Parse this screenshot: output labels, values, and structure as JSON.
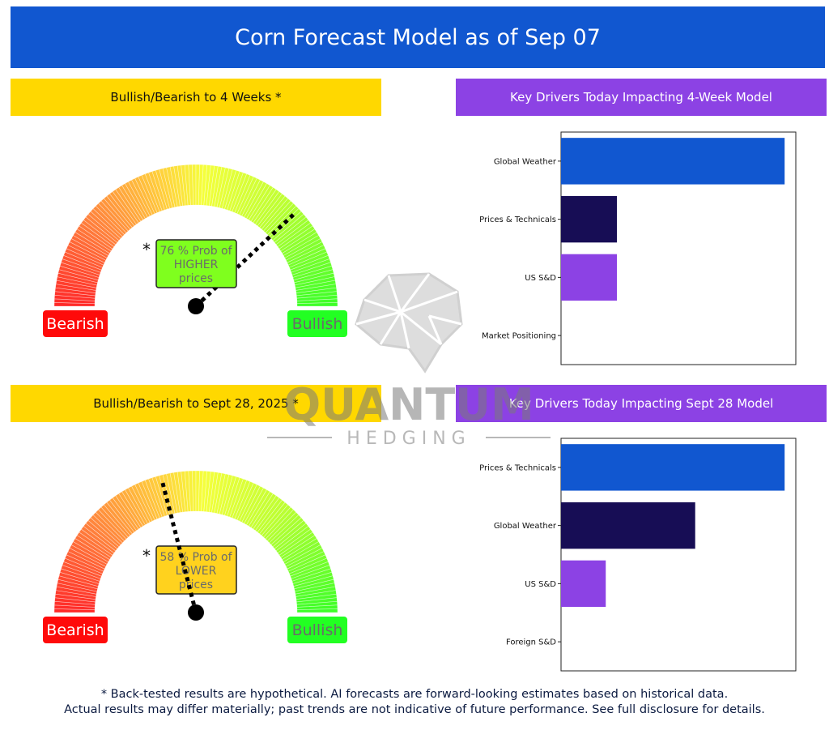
{
  "header": {
    "title": "Corn Forecast Model as of Sep 07"
  },
  "sections": {
    "gauge1_title": "Bullish/Bearish to 4 Weeks *",
    "drivers1_title": "Key Drivers Today Impacting 4-Week Model",
    "gauge2_title": "Bullish/Bearish to Sept 28, 2025 *",
    "drivers2_title": "Key Drivers Today Impacting Sept 28 Model"
  },
  "gauges": [
    {
      "left_label": "Bearish",
      "right_label": "Bullish",
      "asterisk": "*",
      "prob_lines": [
        "76 % Prob of",
        "HIGHER",
        "prices"
      ],
      "probability_pct": 76,
      "direction": "HIGHER",
      "box_color": "#7fff1e"
    },
    {
      "left_label": "Bearish",
      "right_label": "Bullish",
      "asterisk": "*",
      "prob_lines": [
        "58 % Prob of",
        "LOWER",
        "prices"
      ],
      "probability_pct": 58,
      "direction": "LOWER",
      "box_color": "#ffd21e"
    }
  ],
  "chart_data": [
    {
      "type": "bar",
      "orientation": "horizontal",
      "categories": [
        "Global Weather",
        "Prices & Technicals",
        "US S&D",
        "Market Positioning"
      ],
      "values": [
        1.0,
        0.25,
        0.25,
        0.0
      ],
      "bar_colors": [
        "#1157d0",
        "#170d55",
        "#8c42e4",
        "#ffffff"
      ],
      "xlim": [
        0,
        1.05
      ],
      "grid": false
    },
    {
      "type": "bar",
      "orientation": "horizontal",
      "categories": [
        "Prices & Technicals",
        "Global Weather",
        "US S&D",
        "Foreign S&D"
      ],
      "values": [
        1.0,
        0.6,
        0.2,
        0.0
      ],
      "bar_colors": [
        "#1157d0",
        "#170d55",
        "#8c42e4",
        "#ffffff"
      ],
      "xlim": [
        0,
        1.05
      ],
      "grid": false
    }
  ],
  "watermark": {
    "brand": "QUANTUM",
    "sub": "HEDGING"
  },
  "disclaimer": {
    "line1": "* Back-tested results are hypothetical. AI forecasts are forward-looking estimates based on historical data.",
    "line2": "Actual results may differ materially; past trends are not indicative of future performance. See full disclosure for details."
  },
  "colors": {
    "bearish_pill": "#ff0a0a",
    "bullish_pill": "#22ff22",
    "bullish_text": "#6b6b6b"
  }
}
